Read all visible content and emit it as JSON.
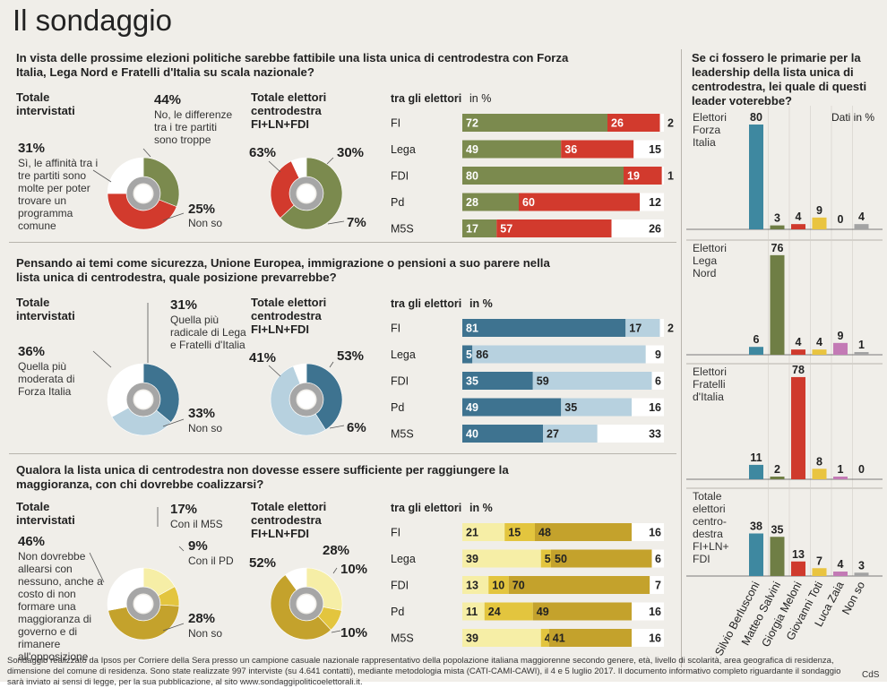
{
  "title": "Il sondaggio",
  "footnote": "Sondaggio realizzato da Ipsos per Corriere della Sera presso un campione casuale nazionale rappresentativo della popolazione italiana maggiorenne secondo genere, età, livello di scolarità, area geografica di residenza, dimensione del comune di residenza. Sono state realizzate 997 interviste (su 4.641 contatti), mediante metodologia mista (CATI-CAMI-CAWI), il 4 e 5 luglio 2017. Il documento informativo completo riguardante il sondaggio sarà inviato ai sensi di legge, per la sua pubblicazione, al sito www.sondaggipoliticoelettorali.it.",
  "credit": "CdS",
  "labels": {
    "total": "Totale intervistati",
    "electorate": "Totale elettori centrodestra FI+LN+FDI",
    "among": "tra gli elettori",
    "unit": "in %"
  },
  "chart_data": [
    {
      "type": "pie",
      "title": "In vista delle prossime elezioni politiche sarebbe fattibile una lista unica di centrodestra con Forza Italia, Lega Nord e Fratelli d'Italia su scala nazionale?",
      "colors": [
        "#7b8a4e",
        "#d23a2d",
        "#ffffff"
      ],
      "total": {
        "slices": [
          {
            "value": 31,
            "label": "31%",
            "desc": "Sì, le affinità tra i tre partiti sono molte per poter trovare un programma comune"
          },
          {
            "value": 44,
            "label": "44%",
            "desc": "No, le differenze tra i tre partiti sono troppe"
          },
          {
            "value": 25,
            "label": "25%",
            "desc": "Non so"
          }
        ]
      },
      "electorate": {
        "slices": [
          {
            "value": 63,
            "label": "63%"
          },
          {
            "value": 30,
            "label": "30%"
          },
          {
            "value": 7,
            "label": "7%"
          }
        ]
      },
      "bars": {
        "categories": [
          "FI",
          "Lega",
          "FDI",
          "Pd",
          "M5S"
        ],
        "series": [
          [
            72,
            26,
            2
          ],
          [
            49,
            36,
            15
          ],
          [
            80,
            19,
            1
          ],
          [
            28,
            60,
            12
          ],
          [
            17,
            57,
            26
          ]
        ]
      }
    },
    {
      "type": "pie",
      "title": "Pensando ai temi come sicurezza, Unione Europea, immigrazione o pensioni a suo parere nella lista unica di centrodestra, quale posizione prevarrebbe?",
      "colors": [
        "#3e7390",
        "#b7d1df",
        "#ffffff"
      ],
      "total": {
        "slices": [
          {
            "value": 36,
            "label": "36%",
            "desc": "Quella più moderata di Forza Italia"
          },
          {
            "value": 31,
            "label": "31%",
            "desc": "Quella più radicale di Lega e Fratelli d'Italia"
          },
          {
            "value": 33,
            "label": "33%",
            "desc": "Non so"
          }
        ]
      },
      "electorate": {
        "slices": [
          {
            "value": 41,
            "label": "41%"
          },
          {
            "value": 53,
            "label": "53%"
          },
          {
            "value": 6,
            "label": "6%"
          }
        ]
      },
      "bars": {
        "categories": [
          "FI",
          "Lega",
          "FDI",
          "Pd",
          "M5S"
        ],
        "series": [
          [
            81,
            17,
            2
          ],
          [
            5,
            86,
            9
          ],
          [
            35,
            59,
            6
          ],
          [
            49,
            35,
            16
          ],
          [
            40,
            27,
            33
          ]
        ]
      }
    },
    {
      "type": "pie",
      "title": "Qualora la lista unica di centrodestra non dovesse essere sufficiente per raggiungere la maggioranza, con chi dovrebbe coalizzarsi?",
      "colors": [
        "#f6eea6",
        "#e3c53e",
        "#c4a22c",
        "#ffffff"
      ],
      "total": {
        "slices": [
          {
            "value": 17,
            "label": "17%",
            "desc": "Con il M5S"
          },
          {
            "value": 9,
            "label": "9%",
            "desc": "Con il PD"
          },
          {
            "value": 46,
            "label": "46%",
            "desc": "Non dovrebbe allearsi con nessuno, anche a costo di non formare una maggioranza di governo e di rimanere all'opposizione"
          },
          {
            "value": 28,
            "label": "28%",
            "desc": "Non so"
          }
        ]
      },
      "electorate": {
        "slices": [
          {
            "value": 28,
            "label": "28%"
          },
          {
            "value": 10,
            "label": "10%"
          },
          {
            "value": 52,
            "label": "52%"
          },
          {
            "value": 10,
            "label": "10%"
          }
        ]
      },
      "bars": {
        "categories": [
          "FI",
          "Lega",
          "FDI",
          "Pd",
          "M5S"
        ],
        "series": [
          [
            21,
            15,
            48,
            16
          ],
          [
            39,
            5,
            50,
            6
          ],
          [
            13,
            10,
            70,
            7
          ],
          [
            11,
            24,
            49,
            16
          ],
          [
            39,
            4,
            41,
            16
          ]
        ]
      }
    },
    {
      "type": "bar",
      "title": "Se ci fossero le primarie per la leadership della lista unica di centrodestra, lei quale di questi leader voterebbe?",
      "unit_note": "Dati in %",
      "categories": [
        "Silvio Berlusconi",
        "Matteo Salvini",
        "Giorgia Meloni",
        "Giovanni Toti",
        "Luca Zaia",
        "Non so"
      ],
      "colors": [
        "#3e88a0",
        "#6f7e45",
        "#cf3a2d",
        "#e9c440",
        "#c37ab5",
        "#a3a3a3"
      ],
      "series": [
        {
          "name": "Elettori Forza Italia",
          "values": [
            80,
            3,
            4,
            9,
            0,
            4
          ]
        },
        {
          "name": "Elettori Lega Nord",
          "values": [
            6,
            76,
            4,
            4,
            9,
            1
          ]
        },
        {
          "name": "Elettori Fratelli d'Italia",
          "values": [
            11,
            2,
            78,
            8,
            1,
            0
          ]
        },
        {
          "name": "Totale elettori centro-destra FI+LN+ FDI",
          "values": [
            38,
            35,
            13,
            7,
            4,
            3
          ]
        }
      ]
    }
  ]
}
